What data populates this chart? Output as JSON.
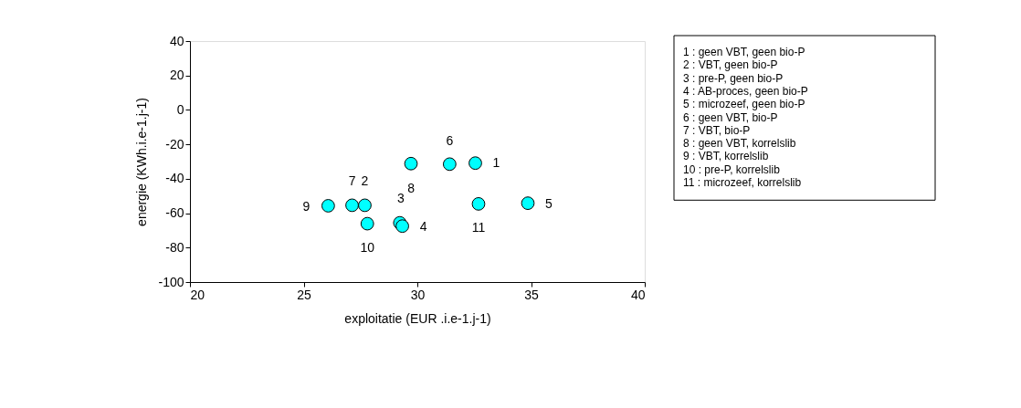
{
  "chart_data": {
    "type": "scatter",
    "xlabel": "exploitatie (EUR .i.e-1.j-1)",
    "ylabel": "energie (KWh.i.e-1.j-1)",
    "xlim": [
      20,
      40
    ],
    "xticks": [
      20,
      25,
      30,
      35,
      40
    ],
    "ylim": [
      -100,
      40
    ],
    "yticks": [
      -100,
      -80,
      -60,
      -40,
      -20,
      0,
      20,
      40
    ],
    "grid": false,
    "marker": "circle",
    "series": [
      {
        "color": "#00ffff",
        "x": [
          32.55,
          27.69,
          29.23,
          29.34,
          34.86,
          31.42,
          27.13,
          29.72,
          26.08,
          27.8,
          32.69
        ],
        "values": [
          -30.9,
          -55.4,
          -65.6,
          -67.5,
          -54.2,
          -31.5,
          -55.4,
          -31.2,
          -55.7,
          -66.1,
          -54.6
        ]
      }
    ],
    "annotations": [
      {
        "text": "1",
        "x": 32.55,
        "y": -30.9
      },
      {
        "text": "2",
        "x": 27.69,
        "y": -55.4
      },
      {
        "text": "3",
        "x": 29.23,
        "y": -65.6
      },
      {
        "text": "4",
        "x": 29.34,
        "y": -67.5
      },
      {
        "text": "5",
        "x": 34.86,
        "y": -54.2
      },
      {
        "text": "6",
        "x": 31.42,
        "y": -31.5
      },
      {
        "text": "7",
        "x": 27.13,
        "y": -55.4
      },
      {
        "text": "8",
        "x": 29.72,
        "y": -31.2
      },
      {
        "text": "9",
        "x": 26.08,
        "y": -55.7
      },
      {
        "text": "10",
        "x": 27.8,
        "y": -66.1
      },
      {
        "text": "11",
        "x": 32.69,
        "y": -54.6
      },
      "1  : geen VBT, geen bio-P",
      "2  : VBT, geen bio-P",
      "3  : pre-P, geen bio-P",
      "4  : AB-proces, geen bio-P",
      "5  : microzeef, geen bio-P",
      "6  : geen VBT, bio-P",
      "7  : VBT, bio-P",
      "8  : geen VBT, korrelslib",
      "9 :  VBT, korrelslib",
      "10 :  pre-P, korrelslib",
      "11 :  microzeef, korrelslib"
    ]
  }
}
